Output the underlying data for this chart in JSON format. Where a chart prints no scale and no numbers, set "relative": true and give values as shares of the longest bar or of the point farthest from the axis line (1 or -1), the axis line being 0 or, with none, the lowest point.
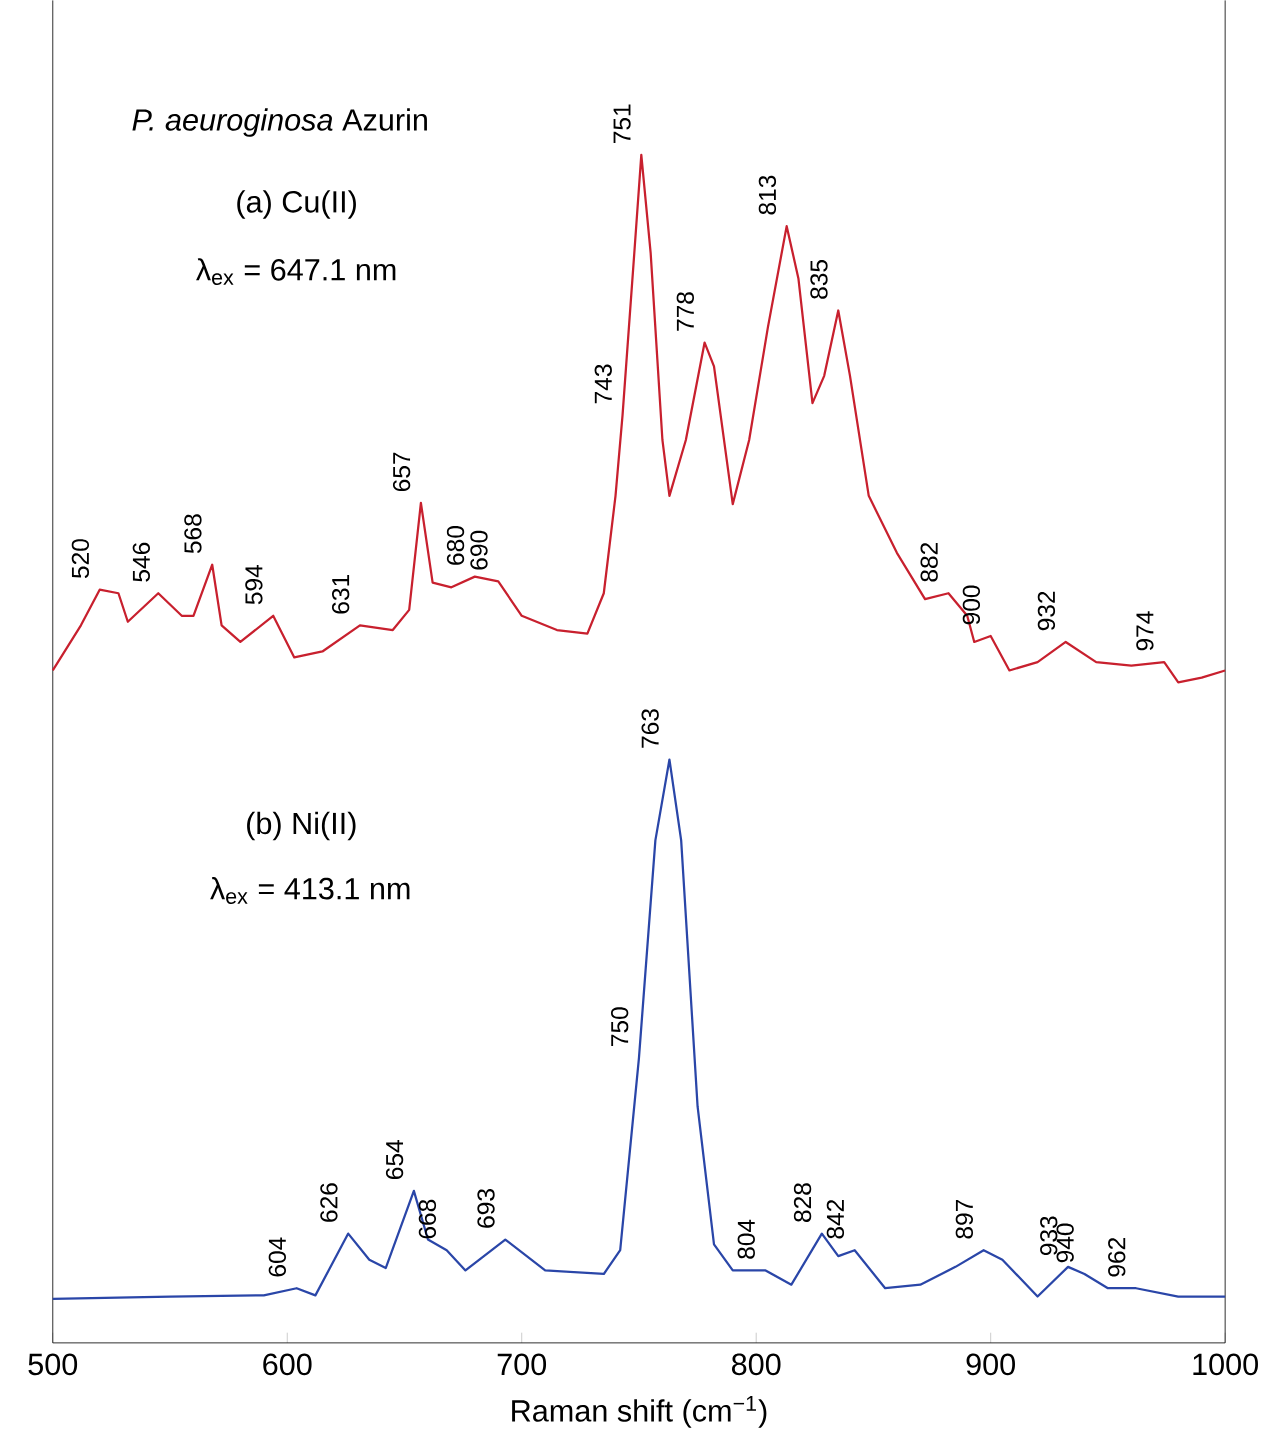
{
  "chart_data": {
    "type": "line",
    "title": "*P. aeuroginosa* Azurin",
    "xlabel": "Raman shift (cm$^{−1}$)",
    "relative": true,
    "xlim": [
      500,
      1000
    ],
    "xticks": [
      500,
      600,
      700,
      800,
      900,
      1000
    ],
    "marker": "none",
    "line_style": "solid",
    "series": [
      {
        "color": "#c8202e",
        "x": [
          500,
          512,
          520,
          528,
          532,
          545,
          555,
          560,
          568,
          572,
          580,
          594,
          603,
          615,
          631,
          645,
          652,
          657,
          662,
          670,
          680,
          690,
          700,
          715,
          728,
          735,
          740,
          743,
          748,
          751,
          755,
          760,
          763,
          770,
          778,
          782,
          790,
          797,
          805,
          813,
          818,
          824,
          829,
          835,
          840,
          848,
          860,
          872,
          882,
          890,
          893,
          900,
          908,
          920,
          932,
          945,
          960,
          974,
          980,
          990,
          1000
        ],
        "values": [
          0.566,
          0.604,
          0.634,
          0.631,
          0.607,
          0.631,
          0.612,
          0.612,
          0.655,
          0.604,
          0.59,
          0.612,
          0.577,
          0.582,
          0.604,
          0.6,
          0.617,
          0.707,
          0.64,
          0.636,
          0.645,
          0.641,
          0.612,
          0.6,
          0.597,
          0.631,
          0.713,
          0.781,
          0.917,
          1.0,
          0.917,
          0.76,
          0.713,
          0.76,
          0.842,
          0.822,
          0.706,
          0.76,
          0.855,
          0.94,
          0.896,
          0.791,
          0.814,
          0.869,
          0.814,
          0.713,
          0.665,
          0.626,
          0.631,
          0.612,
          0.59,
          0.595,
          0.566,
          0.573,
          0.59,
          0.573,
          0.57,
          0.573,
          0.556,
          0.56,
          0.566
        ]
      },
      {
        "color": "#2a46a8",
        "x": [
          500,
          550,
          590,
          604,
          612,
          626,
          635,
          642,
          654,
          660,
          668,
          676,
          693,
          710,
          735,
          742,
          750,
          757,
          763,
          768,
          775,
          782,
          790,
          804,
          815,
          828,
          835,
          842,
          855,
          870,
          885,
          897,
          905,
          920,
          933,
          940,
          950,
          962,
          980,
          1000
        ],
        "values": [
          0.037,
          0.039,
          0.04,
          0.046,
          0.04,
          0.092,
          0.07,
          0.063,
          0.128,
          0.087,
          0.078,
          0.061,
          0.087,
          0.061,
          0.058,
          0.078,
          0.24,
          0.423,
          0.491,
          0.423,
          0.199,
          0.083,
          0.061,
          0.061,
          0.049,
          0.092,
          0.073,
          0.078,
          0.046,
          0.049,
          0.064,
          0.078,
          0.07,
          0.039,
          0.064,
          0.058,
          0.046,
          0.046,
          0.039,
          0.039
        ]
      }
    ],
    "annotations": [
      "(a) Cu(II)",
      "λ$_{ex}$ = 647.1 nm",
      "(b) Ni(II)",
      "λ$_{ex}$ = 413.1 nm",
      {
        "text": "520",
        "x": 520,
        "y": 0.634
      },
      {
        "text": "546",
        "x": 546,
        "y": 0.631
      },
      {
        "text": "568",
        "x": 568,
        "y": 0.655
      },
      {
        "text": "594",
        "x": 594,
        "y": 0.612
      },
      {
        "text": "631",
        "x": 631,
        "y": 0.604
      },
      {
        "text": "657",
        "x": 657,
        "y": 0.707
      },
      {
        "text": "680",
        "x": 680,
        "y": 0.645
      },
      {
        "text": "690",
        "x": 690,
        "y": 0.641
      },
      {
        "text": "743",
        "x": 743,
        "y": 0.781
      },
      {
        "text": "751",
        "x": 751,
        "y": 1.0
      },
      {
        "text": "778",
        "x": 778,
        "y": 0.842
      },
      {
        "text": "813",
        "x": 813,
        "y": 0.94
      },
      {
        "text": "835",
        "x": 835,
        "y": 0.869
      },
      {
        "text": "882",
        "x": 882,
        "y": 0.631
      },
      {
        "text": "900",
        "x": 900,
        "y": 0.595
      },
      {
        "text": "932",
        "x": 932,
        "y": 0.59
      },
      {
        "text": "974",
        "x": 974,
        "y": 0.573
      },
      {
        "text": "604",
        "x": 604,
        "y": 0.046
      },
      {
        "text": "626",
        "x": 626,
        "y": 0.092
      },
      {
        "text": "654",
        "x": 654,
        "y": 0.128
      },
      {
        "text": "668",
        "x": 668,
        "y": 0.078
      },
      {
        "text": "693",
        "x": 693,
        "y": 0.087
      },
      {
        "text": "750",
        "x": 750,
        "y": 0.24
      },
      {
        "text": "763",
        "x": 763,
        "y": 0.491
      },
      {
        "text": "804",
        "x": 804,
        "y": 0.061
      },
      {
        "text": "828",
        "x": 828,
        "y": 0.092
      },
      {
        "text": "842",
        "x": 842,
        "y": 0.078
      },
      {
        "text": "897",
        "x": 897,
        "y": 0.078
      },
      {
        "text": "933",
        "x": 933,
        "y": 0.064
      },
      {
        "text": "940",
        "x": 940,
        "y": 0.058
      },
      {
        "text": "962",
        "x": 962,
        "y": 0.046
      }
    ]
  }
}
